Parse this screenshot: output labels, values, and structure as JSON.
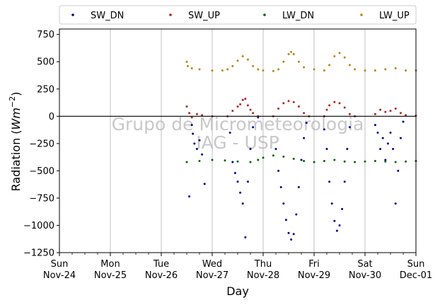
{
  "chart_data": {
    "type": "scatter",
    "title": "",
    "xlabel": "Day",
    "ylabel": "Radiation (Wm⁻²)",
    "ylabel_main": "Radiation (",
    "ylabel_unit": "Wm",
    "ylabel_exp": "−2",
    "ylabel_close": ")",
    "ylim": [
      -1250,
      800
    ],
    "yticks": [
      -1250,
      -1000,
      -750,
      -500,
      -250,
      0,
      250,
      500,
      750
    ],
    "ytick_labels": [
      "−1250",
      "−1000",
      "−750",
      "−500",
      "−250",
      "0",
      "250",
      "500",
      "750"
    ],
    "xlim": [
      0,
      7
    ],
    "xticks": [
      {
        "day": "Sun",
        "date": "Nov-24"
      },
      {
        "day": "Mon",
        "date": "Nov-25"
      },
      {
        "day": "Tue",
        "date": "Nov-26"
      },
      {
        "day": "Wed",
        "date": "Nov-27"
      },
      {
        "day": "Thu",
        "date": "Nov-28"
      },
      {
        "day": "Fri",
        "date": "Nov-29"
      },
      {
        "day": "Sat",
        "date": "Nov-30"
      },
      {
        "day": "Sun",
        "date": "Dec-01"
      }
    ],
    "grid": "vertical",
    "zero_line": 0,
    "legend_position": "top, above plot",
    "watermark": [
      "Grupo de Micrometeorologia",
      "IAG - USP"
    ],
    "data_start": "Nov-26 12:00",
    "data_end": "Dec-01 00:00",
    "series": [
      {
        "name": "SW_DN",
        "color": "#00008b",
        "points": [
          [
            2.55,
            -735
          ],
          [
            2.6,
            -80
          ],
          [
            2.62,
            -160
          ],
          [
            2.65,
            -250
          ],
          [
            2.7,
            -300
          ],
          [
            2.75,
            -220
          ],
          [
            2.8,
            -350
          ],
          [
            2.85,
            -620
          ],
          [
            3.35,
            -150
          ],
          [
            3.4,
            -420
          ],
          [
            3.45,
            -520
          ],
          [
            3.5,
            -600
          ],
          [
            3.55,
            -700
          ],
          [
            3.6,
            -800
          ],
          [
            3.65,
            -1110
          ],
          [
            3.7,
            -600
          ],
          [
            3.75,
            -300
          ],
          [
            3.8,
            -100
          ],
          [
            3.9,
            -10
          ],
          [
            4.25,
            -300
          ],
          [
            4.3,
            -500
          ],
          [
            4.35,
            -650
          ],
          [
            4.4,
            -800
          ],
          [
            4.45,
            -950
          ],
          [
            4.5,
            -1070
          ],
          [
            4.55,
            -1130
          ],
          [
            4.6,
            -1080
          ],
          [
            4.65,
            -900
          ],
          [
            4.7,
            -650
          ],
          [
            4.75,
            -400
          ],
          [
            4.8,
            -200
          ],
          [
            4.85,
            -60
          ],
          [
            5.2,
            -120
          ],
          [
            5.25,
            -300
          ],
          [
            5.3,
            -600
          ],
          [
            5.35,
            -800
          ],
          [
            5.4,
            -960
          ],
          [
            5.45,
            -1050
          ],
          [
            5.5,
            -1000
          ],
          [
            5.55,
            -850
          ],
          [
            5.6,
            -600
          ],
          [
            5.65,
            -300
          ],
          [
            5.7,
            -100
          ],
          [
            6.2,
            -80
          ],
          [
            6.25,
            -150
          ],
          [
            6.3,
            -300
          ],
          [
            6.35,
            -200
          ],
          [
            6.4,
            -400
          ],
          [
            6.45,
            -250
          ],
          [
            6.5,
            -150
          ],
          [
            6.55,
            -300
          ],
          [
            6.6,
            -800
          ],
          [
            6.65,
            -500
          ],
          [
            6.7,
            -200
          ],
          [
            6.75,
            -50
          ]
        ]
      },
      {
        "name": "SW_UP",
        "color": "#b22222",
        "points": [
          [
            2.5,
            90
          ],
          [
            2.55,
            30
          ],
          [
            2.6,
            -10
          ],
          [
            2.7,
            20
          ],
          [
            2.8,
            10
          ],
          [
            3.0,
            0
          ],
          [
            3.3,
            0
          ],
          [
            3.4,
            50
          ],
          [
            3.5,
            90
          ],
          [
            3.55,
            110
          ],
          [
            3.6,
            150
          ],
          [
            3.65,
            160
          ],
          [
            3.7,
            100
          ],
          [
            3.75,
            60
          ],
          [
            3.8,
            30
          ],
          [
            3.9,
            0
          ],
          [
            4.2,
            0
          ],
          [
            4.3,
            70
          ],
          [
            4.4,
            120
          ],
          [
            4.5,
            140
          ],
          [
            4.6,
            130
          ],
          [
            4.7,
            90
          ],
          [
            4.8,
            30
          ],
          [
            4.9,
            0
          ],
          [
            5.2,
            0
          ],
          [
            5.25,
            60
          ],
          [
            5.3,
            100
          ],
          [
            5.4,
            130
          ],
          [
            5.5,
            120
          ],
          [
            5.6,
            80
          ],
          [
            5.7,
            20
          ],
          [
            5.8,
            0
          ],
          [
            6.2,
            20
          ],
          [
            6.3,
            60
          ],
          [
            6.4,
            40
          ],
          [
            6.5,
            50
          ],
          [
            6.6,
            70
          ],
          [
            6.7,
            30
          ],
          [
            6.8,
            10
          ],
          [
            7.0,
            5
          ]
        ]
      },
      {
        "name": "LW_DN",
        "color": "#006400",
        "points": [
          [
            2.5,
            -420
          ],
          [
            2.75,
            -410
          ],
          [
            3.0,
            -400
          ],
          [
            3.25,
            -405
          ],
          [
            3.5,
            -415
          ],
          [
            3.75,
            -420
          ],
          [
            3.9,
            -400
          ],
          [
            4.0,
            -380
          ],
          [
            4.2,
            -360
          ],
          [
            4.4,
            -370
          ],
          [
            4.6,
            -390
          ],
          [
            4.8,
            -410
          ],
          [
            5.0,
            -420
          ],
          [
            5.2,
            -410
          ],
          [
            5.4,
            -400
          ],
          [
            5.6,
            -415
          ],
          [
            5.8,
            -420
          ],
          [
            6.0,
            -415
          ],
          [
            6.2,
            -410
          ],
          [
            6.4,
            -415
          ],
          [
            6.6,
            -420
          ],
          [
            6.8,
            -415
          ],
          [
            7.0,
            -410
          ]
        ]
      },
      {
        "name": "LW_UP",
        "color": "#b8860b",
        "points": [
          [
            2.5,
            500
          ],
          [
            2.52,
            460
          ],
          [
            2.6,
            440
          ],
          [
            2.75,
            430
          ],
          [
            3.0,
            420
          ],
          [
            3.2,
            420
          ],
          [
            3.3,
            430
          ],
          [
            3.4,
            460
          ],
          [
            3.5,
            510
          ],
          [
            3.6,
            550
          ],
          [
            3.7,
            520
          ],
          [
            3.8,
            460
          ],
          [
            3.9,
            430
          ],
          [
            4.0,
            420
          ],
          [
            4.2,
            415
          ],
          [
            4.3,
            430
          ],
          [
            4.4,
            500
          ],
          [
            4.5,
            570
          ],
          [
            4.55,
            590
          ],
          [
            4.6,
            570
          ],
          [
            4.7,
            500
          ],
          [
            4.8,
            450
          ],
          [
            5.0,
            430
          ],
          [
            5.2,
            420
          ],
          [
            5.3,
            470
          ],
          [
            5.4,
            550
          ],
          [
            5.5,
            580
          ],
          [
            5.6,
            540
          ],
          [
            5.7,
            470
          ],
          [
            5.8,
            430
          ],
          [
            6.0,
            420
          ],
          [
            6.2,
            420
          ],
          [
            6.4,
            430
          ],
          [
            6.6,
            440
          ],
          [
            6.8,
            420
          ],
          [
            7.0,
            420
          ]
        ]
      }
    ]
  }
}
